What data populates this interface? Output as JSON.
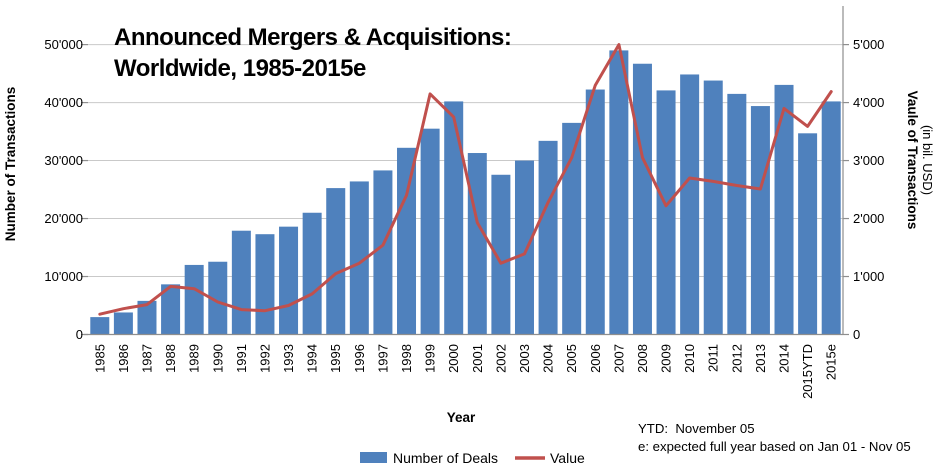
{
  "title": {
    "line1": "Announced Mergers & Acquisitions:",
    "line2": "Worldwide, 1985-2015e"
  },
  "axes": {
    "left": {
      "title": "Number of Transactions",
      "tick_labels": [
        "50'000",
        "40'000",
        "30'000",
        "20'000",
        "10'000",
        "0"
      ]
    },
    "right": {
      "title": "Vaule of Transactions",
      "subtitle": "(in bil. USD)",
      "tick_labels": [
        "5'000",
        "4'000",
        "3'000",
        "2'000",
        "1'000",
        "0"
      ]
    },
    "x": {
      "title": "Year"
    }
  },
  "legend": {
    "items": [
      {
        "label": "Number of Deals",
        "type": "bar"
      },
      {
        "label": "Value",
        "type": "line"
      }
    ]
  },
  "footnotes": {
    "line1": "YTD:  November 05",
    "line2": "e: expected full year based on Jan 01 - Nov 05"
  },
  "colors": {
    "bar": "#4F81BD",
    "line": "#C0504D",
    "gridline": "#C9C9C9",
    "axis_line": "#8E8E8E",
    "text": "#000000",
    "background": "#FFFFFF"
  },
  "chart_data": {
    "type": "bar",
    "title": "Announced Mergers & Acquisitions: Worldwide, 1985-2015e",
    "xlabel": "Year",
    "ylabel_left": "Number of Transactions",
    "ylabel_right": "Vaule of Transactions (in bil. USD)",
    "ylim_left": [
      0,
      50000
    ],
    "ylim_right": [
      0,
      5000
    ],
    "grid": true,
    "legend_position": "bottom",
    "categories": [
      "1985",
      "1986",
      "1987",
      "1988",
      "1989",
      "1990",
      "1991",
      "1992",
      "1993",
      "1994",
      "1995",
      "1996",
      "1997",
      "1998",
      "1999",
      "2000",
      "2001",
      "2002",
      "2003",
      "2004",
      "2005",
      "2006",
      "2007",
      "2008",
      "2009",
      "2010",
      "2011",
      "2012",
      "2013",
      "2014",
      "2015YTD",
      "2015e"
    ],
    "series": [
      {
        "name": "Number of Deals",
        "type": "bar",
        "axis": "left",
        "values": [
          3000,
          3800,
          5800,
          8650,
          12000,
          12550,
          17900,
          17300,
          18600,
          21000,
          25250,
          26400,
          28300,
          32200,
          35500,
          40200,
          31300,
          27550,
          30000,
          33400,
          36500,
          42250,
          49000,
          46700,
          42100,
          44850,
          43800,
          41500,
          39400,
          43050,
          34700,
          40200
        ]
      },
      {
        "name": "Value",
        "type": "line",
        "axis": "right",
        "values": [
          350,
          445,
          515,
          830,
          790,
          560,
          430,
          410,
          500,
          700,
          1050,
          1230,
          1540,
          2400,
          4150,
          3750,
          1930,
          1230,
          1390,
          2280,
          3050,
          4300,
          5000,
          3050,
          2220,
          2700,
          2640,
          2570,
          2510,
          3900,
          3590,
          4190
        ]
      }
    ]
  }
}
